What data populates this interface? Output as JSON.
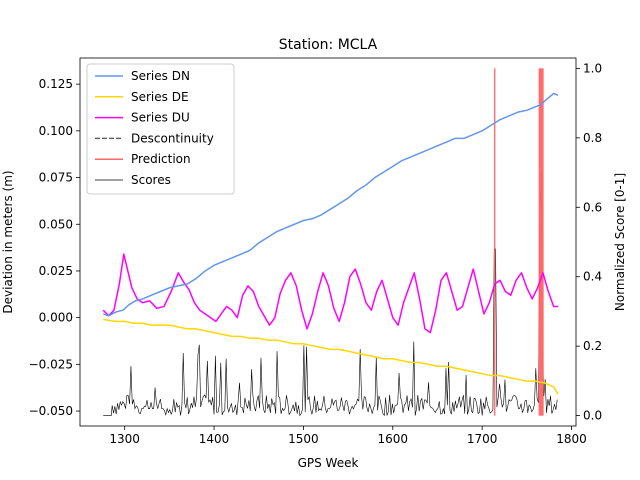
{
  "chart_data": {
    "type": "line",
    "title": "Station: MCLA",
    "xlabel": "GPS Week",
    "ylabel": "Deviation in meters (m)",
    "y2label": "Normalized Score [0-1]",
    "xlim": [
      1250,
      1805
    ],
    "ylim": [
      -0.058,
      0.139
    ],
    "y2lim": [
      -0.03,
      1.03
    ],
    "xticks": [
      1300,
      1400,
      1500,
      1600,
      1700,
      1800
    ],
    "yticks": [
      -0.05,
      -0.025,
      0.0,
      0.025,
      0.05,
      0.075,
      0.1,
      0.125
    ],
    "yticklabels": [
      "−0.050",
      "−0.025",
      "0.000",
      "0.025",
      "0.050",
      "0.075",
      "0.100",
      "0.125"
    ],
    "y2ticks": [
      0.0,
      0.2,
      0.4,
      0.6,
      0.8,
      1.0
    ],
    "y2ticklabels": [
      "0.0",
      "0.2",
      "0.4",
      "0.6",
      "0.8",
      "1.0"
    ],
    "grid": false,
    "legend_position": "top-left",
    "series": [
      {
        "name": "Series DN",
        "color": "#6495ed",
        "axis": "left",
        "x": [
          1276,
          1282,
          1290,
          1298,
          1305,
          1312,
          1320,
          1330,
          1340,
          1350,
          1360,
          1370,
          1380,
          1390,
          1400,
          1410,
          1420,
          1430,
          1440,
          1450,
          1460,
          1470,
          1480,
          1490,
          1500,
          1510,
          1520,
          1530,
          1540,
          1550,
          1560,
          1570,
          1580,
          1590,
          1600,
          1610,
          1620,
          1630,
          1640,
          1650,
          1660,
          1670,
          1680,
          1690,
          1700,
          1710,
          1720,
          1730,
          1740,
          1750,
          1760,
          1766,
          1770,
          1775,
          1780,
          1785
        ],
        "values": [
          0.002,
          0.001,
          0.003,
          0.004,
          0.007,
          0.009,
          0.01,
          0.012,
          0.014,
          0.016,
          0.017,
          0.018,
          0.021,
          0.025,
          0.028,
          0.03,
          0.032,
          0.034,
          0.036,
          0.04,
          0.043,
          0.046,
          0.048,
          0.05,
          0.052,
          0.053,
          0.055,
          0.058,
          0.061,
          0.064,
          0.068,
          0.071,
          0.075,
          0.078,
          0.081,
          0.084,
          0.086,
          0.088,
          0.09,
          0.092,
          0.094,
          0.096,
          0.096,
          0.098,
          0.1,
          0.103,
          0.106,
          0.108,
          0.11,
          0.111,
          0.113,
          0.114,
          0.116,
          0.118,
          0.12,
          0.119
        ]
      },
      {
        "name": "Series DE",
        "color": "#ffd700",
        "axis": "left",
        "x": [
          1276,
          1290,
          1300,
          1310,
          1320,
          1330,
          1340,
          1350,
          1360,
          1370,
          1380,
          1390,
          1400,
          1410,
          1420,
          1430,
          1440,
          1450,
          1460,
          1470,
          1480,
          1490,
          1500,
          1510,
          1520,
          1530,
          1540,
          1550,
          1560,
          1570,
          1580,
          1590,
          1600,
          1610,
          1620,
          1630,
          1640,
          1650,
          1660,
          1670,
          1680,
          1690,
          1700,
          1710,
          1720,
          1730,
          1740,
          1750,
          1760,
          1770,
          1780,
          1785
        ],
        "values": [
          -0.001,
          -0.002,
          -0.002,
          -0.003,
          -0.003,
          -0.004,
          -0.004,
          -0.004,
          -0.005,
          -0.006,
          -0.006,
          -0.007,
          -0.008,
          -0.009,
          -0.01,
          -0.01,
          -0.011,
          -0.011,
          -0.012,
          -0.012,
          -0.013,
          -0.014,
          -0.014,
          -0.015,
          -0.016,
          -0.017,
          -0.017,
          -0.018,
          -0.019,
          -0.02,
          -0.021,
          -0.022,
          -0.022,
          -0.023,
          -0.024,
          -0.024,
          -0.025,
          -0.026,
          -0.026,
          -0.027,
          -0.028,
          -0.029,
          -0.03,
          -0.031,
          -0.031,
          -0.032,
          -0.033,
          -0.034,
          -0.034,
          -0.035,
          -0.037,
          -0.041
        ]
      },
      {
        "name": "Series DU",
        "color": "#ff00ff",
        "axis": "left",
        "x": [
          1276,
          1282,
          1288,
          1294,
          1299,
          1303,
          1308,
          1314,
          1320,
          1328,
          1336,
          1344,
          1352,
          1360,
          1366,
          1372,
          1378,
          1384,
          1390,
          1396,
          1402,
          1408,
          1414,
          1420,
          1426,
          1432,
          1438,
          1444,
          1450,
          1456,
          1462,
          1468,
          1474,
          1480,
          1486,
          1492,
          1498,
          1504,
          1510,
          1516,
          1522,
          1528,
          1534,
          1540,
          1546,
          1552,
          1558,
          1564,
          1570,
          1576,
          1582,
          1588,
          1594,
          1600,
          1606,
          1612,
          1618,
          1624,
          1630,
          1636,
          1642,
          1648,
          1654,
          1660,
          1666,
          1672,
          1678,
          1684,
          1690,
          1696,
          1702,
          1708,
          1714,
          1720,
          1726,
          1732,
          1738,
          1744,
          1750,
          1756,
          1762,
          1768,
          1774,
          1780,
          1785
        ],
        "values": [
          0.004,
          0.001,
          0.004,
          0.018,
          0.034,
          0.026,
          0.016,
          0.01,
          0.008,
          0.009,
          0.005,
          0.006,
          0.014,
          0.024,
          0.019,
          0.015,
          0.008,
          0.004,
          0.002,
          0.0,
          -0.002,
          0.002,
          0.006,
          0.004,
          0.0,
          0.012,
          0.017,
          0.014,
          0.006,
          0.001,
          -0.004,
          0.0,
          0.013,
          0.02,
          0.024,
          0.017,
          0.004,
          -0.006,
          0.002,
          0.014,
          0.024,
          0.017,
          0.005,
          -0.002,
          0.008,
          0.022,
          0.026,
          0.018,
          0.008,
          0.004,
          0.014,
          0.02,
          0.01,
          0.0,
          -0.004,
          0.008,
          0.016,
          0.024,
          0.01,
          -0.006,
          -0.008,
          0.004,
          0.02,
          0.024,
          0.014,
          0.004,
          0.006,
          0.016,
          0.026,
          0.014,
          0.002,
          0.008,
          0.018,
          0.02,
          0.014,
          0.012,
          0.02,
          0.024,
          0.016,
          0.01,
          0.016,
          0.024,
          0.014,
          0.006,
          0.006
        ]
      },
      {
        "name": "Descontinuity",
        "color": "#666666",
        "axis": "right",
        "dashed": true,
        "x": [],
        "values": []
      },
      {
        "name": "Prediction",
        "color": "#ff6666",
        "axis": "right",
        "vertical_lines": [
          1714,
          1764,
          1765,
          1766,
          1767,
          1768
        ]
      },
      {
        "name": "Scores",
        "color": "#000000",
        "axis": "right"
      }
    ]
  }
}
